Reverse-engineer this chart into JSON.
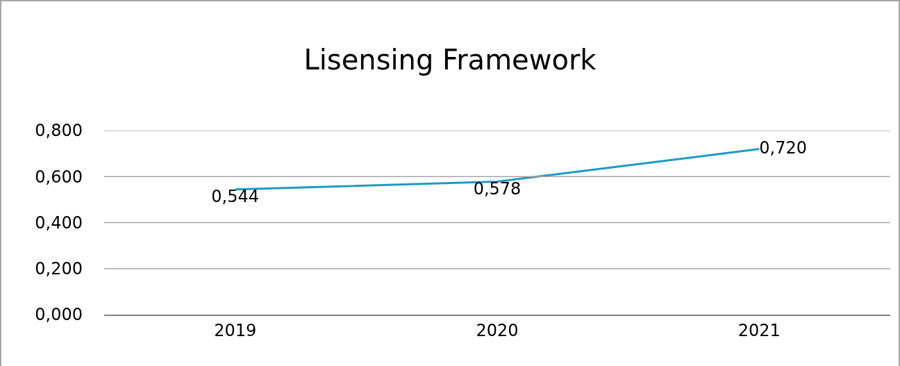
{
  "chart_data": {
    "type": "line",
    "title": "Lisensing Framework",
    "categories": [
      "2019",
      "2020",
      "2021"
    ],
    "series": [
      {
        "color": "#1f9ac4",
        "values": [
          0.544,
          0.578,
          0.72
        ],
        "value_labels": [
          "0,544",
          "0,578",
          "0,720"
        ]
      }
    ],
    "ylim": [
      0,
      0.8
    ],
    "yticks": [
      {
        "value": 0,
        "label": "0,000"
      },
      {
        "value": 0.2,
        "label": "0,200"
      },
      {
        "value": 0.4,
        "label": "0,400"
      },
      {
        "value": 0.6,
        "label": "0,600"
      },
      {
        "value": 0.8,
        "label": "0,800"
      }
    ],
    "grid": "y",
    "marker": "none",
    "line_style": "solid"
  }
}
